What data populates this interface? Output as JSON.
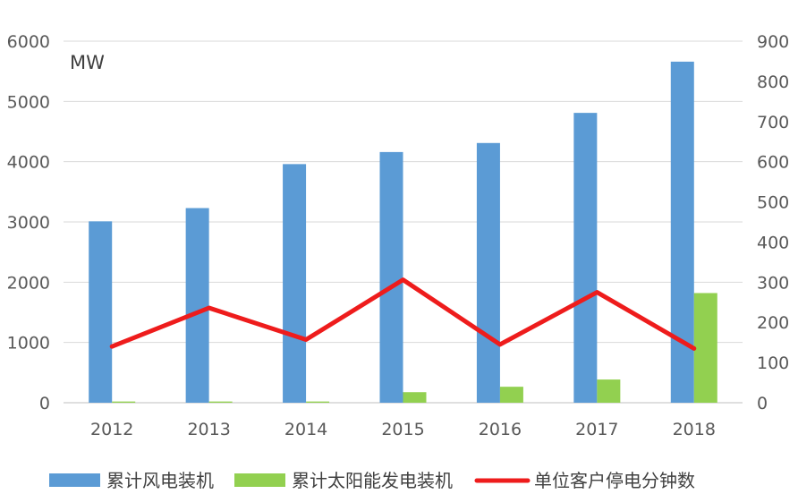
{
  "chart_data": {
    "type": "bar",
    "unit_label": "MW",
    "categories": [
      "2012",
      "2013",
      "2014",
      "2015",
      "2016",
      "2017",
      "2018"
    ],
    "ylim_left": [
      0,
      6000
    ],
    "yticks_left": [
      0,
      1000,
      2000,
      3000,
      4000,
      5000,
      6000
    ],
    "ylim_right": [
      0,
      900
    ],
    "yticks_right": [
      0,
      100,
      200,
      300,
      400,
      500,
      600,
      700,
      800,
      900
    ],
    "grid": true,
    "legend_position": "bottom",
    "series": [
      {
        "name": "累计风电装机",
        "type": "bar",
        "axis": "left",
        "color": "#5b9bd5",
        "values": [
          3010,
          3230,
          3960,
          4160,
          4310,
          4810,
          5660
        ]
      },
      {
        "name": "累计太阳能发电装机",
        "type": "bar",
        "axis": "left",
        "color": "#92d050",
        "values": [
          20,
          20,
          20,
          175,
          265,
          385,
          1820
        ]
      },
      {
        "name": "单位客户停电分钟数",
        "type": "line",
        "axis": "right",
        "color": "#ee1c1c",
        "values": [
          140,
          236,
          157,
          306,
          145,
          275,
          135
        ]
      }
    ]
  }
}
